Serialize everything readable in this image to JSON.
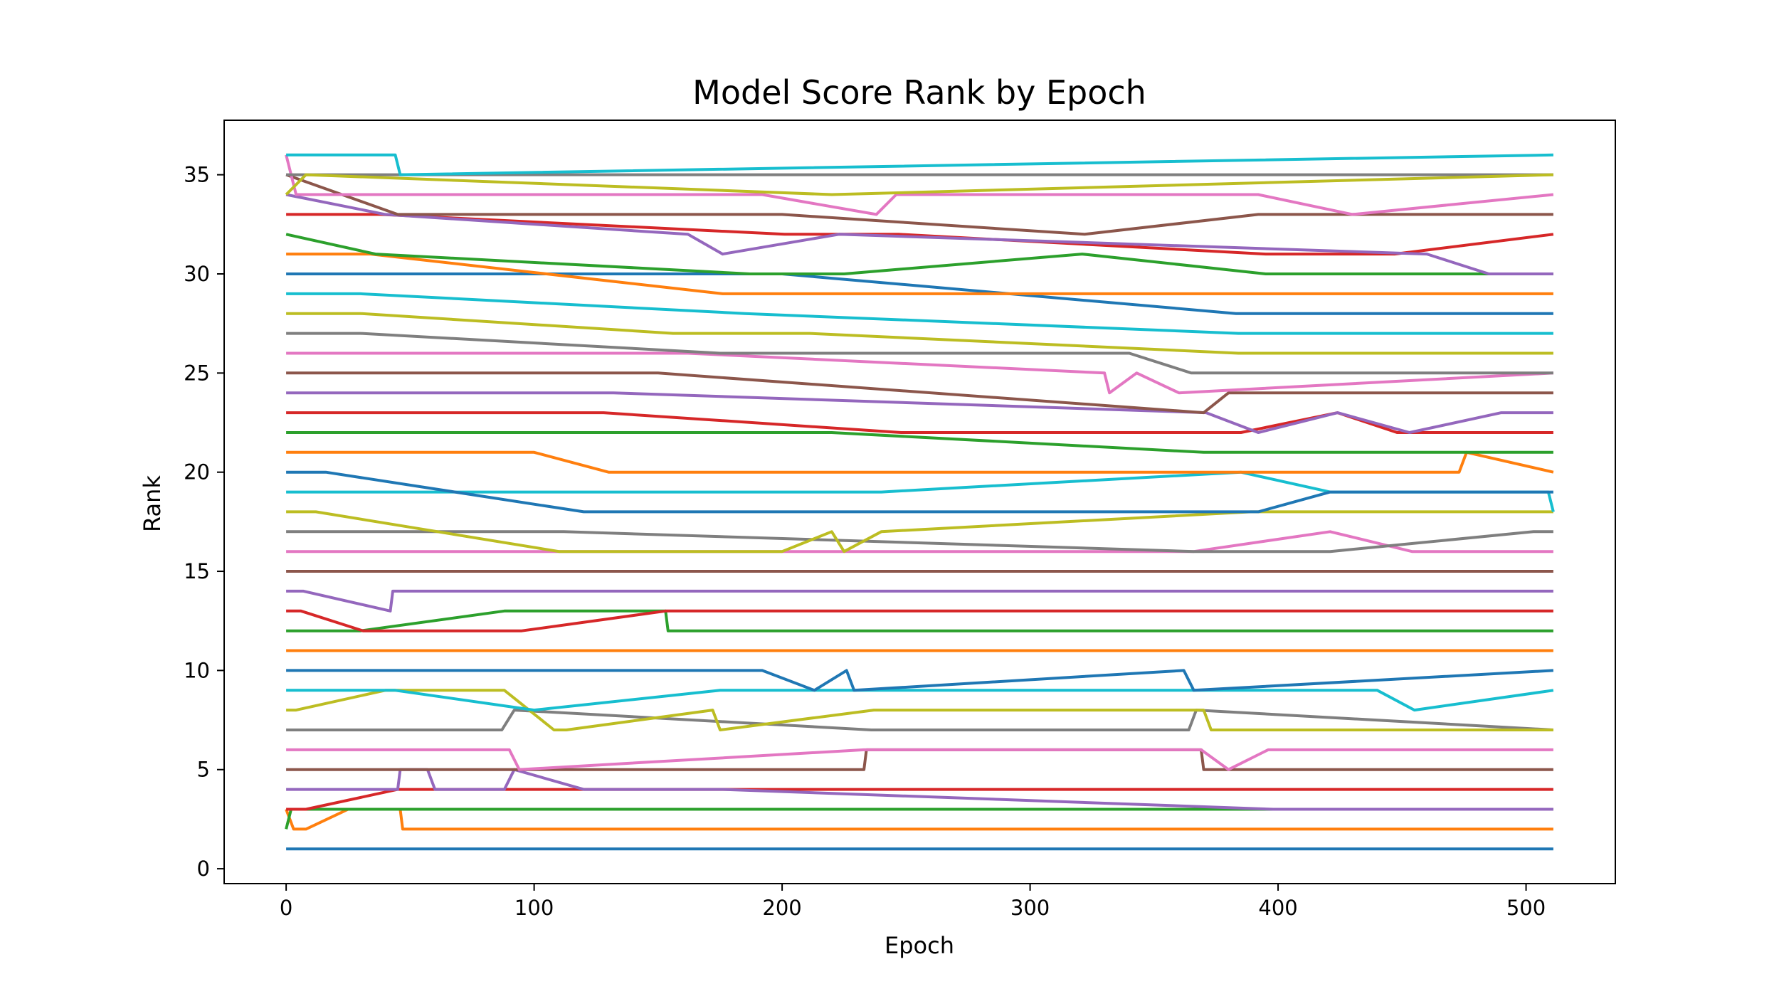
{
  "chart_data": {
    "type": "line",
    "title": "Model Score Rank by Epoch",
    "xlabel": "Epoch",
    "ylabel": "Rank",
    "xlim": [
      -25,
      536
    ],
    "ylim": [
      -0.75,
      37.75
    ],
    "xticks": [
      0,
      100,
      200,
      300,
      400,
      500
    ],
    "yticks": [
      0,
      5,
      10,
      15,
      20,
      25,
      30,
      35
    ],
    "xtick_labels": [
      "0",
      "100",
      "200",
      "300",
      "400",
      "500"
    ],
    "ytick_labels": [
      "0",
      "5",
      "10",
      "15",
      "20",
      "25",
      "30",
      "35"
    ],
    "grid": false,
    "legend": "none",
    "colors": [
      "#1f77b4",
      "#ff7f0e",
      "#2ca02c",
      "#d62728",
      "#9467bd",
      "#8c564b",
      "#e377c2",
      "#7f7f7f",
      "#bcbd22",
      "#17becf"
    ],
    "series": [
      {
        "x": [
          0,
          4,
          511
        ],
        "y": [
          1,
          1,
          1
        ]
      },
      {
        "x": [
          0,
          3,
          8,
          25,
          46,
          47,
          511
        ],
        "y": [
          3,
          2,
          2,
          3,
          3,
          2,
          2
        ]
      },
      {
        "x": [
          0,
          2,
          28,
          45,
          46,
          397,
          398,
          511
        ],
        "y": [
          2,
          3,
          3,
          3,
          3,
          3,
          3,
          3
        ]
      },
      {
        "x": [
          0,
          3,
          8,
          45,
          397,
          398,
          511
        ],
        "y": [
          3,
          3,
          3,
          4,
          4,
          4,
          4
        ]
      },
      {
        "x": [
          0,
          2,
          6,
          45,
          46,
          57,
          60,
          88,
          92,
          120,
          175,
          176,
          398,
          511
        ],
        "y": [
          4,
          4,
          4,
          4,
          5,
          5,
          4,
          4,
          5,
          4,
          4,
          4,
          3,
          3
        ]
      },
      {
        "x": [
          0,
          4,
          30,
          40,
          233,
          234,
          369,
          370,
          395,
          511
        ],
        "y": [
          5,
          5,
          5,
          5,
          5,
          6,
          6,
          5,
          5,
          5
        ]
      },
      {
        "x": [
          0,
          3,
          20,
          90,
          94,
          233,
          369,
          380,
          396,
          511
        ],
        "y": [
          6,
          6,
          6,
          6,
          5,
          6,
          6,
          5,
          6,
          6
        ]
      },
      {
        "x": [
          0,
          4,
          30,
          87,
          92,
          236,
          364,
          367,
          511
        ],
        "y": [
          7,
          7,
          7,
          7,
          8,
          7,
          7,
          8,
          7
        ]
      },
      {
        "x": [
          0,
          4,
          40,
          88,
          108,
          113,
          172,
          175,
          237,
          370,
          373,
          511
        ],
        "y": [
          8,
          8,
          9,
          9,
          7,
          7,
          8,
          7,
          8,
          8,
          7,
          7
        ]
      },
      {
        "x": [
          0,
          5,
          44,
          100,
          175,
          192,
          213,
          440,
          455,
          511
        ],
        "y": [
          9,
          9,
          9,
          8,
          9,
          9,
          9,
          9,
          8,
          9
        ]
      },
      {
        "x": [
          0,
          6,
          46,
          192,
          213,
          226,
          229,
          362,
          366,
          511
        ],
        "y": [
          10,
          10,
          10,
          10,
          9,
          10,
          9,
          10,
          9,
          10
        ]
      },
      {
        "x": [
          0,
          8,
          46,
          47,
          511
        ],
        "y": [
          11,
          11,
          11,
          11,
          11
        ]
      },
      {
        "x": [
          0,
          6,
          30,
          88,
          153,
          154,
          511
        ],
        "y": [
          12,
          12,
          12,
          13,
          13,
          12,
          12
        ]
      },
      {
        "x": [
          0,
          6,
          31,
          88,
          95,
          153,
          511
        ],
        "y": [
          13,
          13,
          12,
          12,
          12,
          13,
          13
        ]
      },
      {
        "x": [
          0,
          7,
          42,
          43,
          511
        ],
        "y": [
          14,
          14,
          13,
          14,
          14
        ]
      },
      {
        "x": [
          0,
          8,
          40,
          106,
          107,
          511
        ],
        "y": [
          15,
          15,
          15,
          15,
          15,
          15
        ]
      },
      {
        "x": [
          0,
          10,
          106,
          366,
          421,
          454,
          500,
          511
        ],
        "y": [
          16,
          16,
          16,
          16,
          17,
          16,
          16,
          16
        ]
      },
      {
        "x": [
          0,
          10,
          84,
          112,
          366,
          421,
          503,
          511
        ],
        "y": [
          17,
          17,
          17,
          17,
          16,
          16,
          17,
          17
        ]
      },
      {
        "x": [
          0,
          12,
          110,
          200,
          220,
          225,
          240,
          389,
          511
        ],
        "y": [
          18,
          18,
          16,
          16,
          17,
          16,
          17,
          18,
          18
        ]
      },
      {
        "x": [
          0,
          14,
          120,
          215,
          240,
          385,
          421,
          509,
          511
        ],
        "y": [
          19,
          19,
          19,
          19,
          19,
          20,
          19,
          19,
          18
        ]
      },
      {
        "x": [
          0,
          16,
          120,
          225,
          392,
          421,
          511
        ],
        "y": [
          20,
          20,
          18,
          18,
          18,
          19,
          19
        ]
      },
      {
        "x": [
          0,
          18,
          100,
          130,
          255,
          385,
          422,
          473,
          476,
          511
        ],
        "y": [
          21,
          21,
          21,
          20,
          20,
          20,
          20,
          20,
          21,
          20
        ]
      },
      {
        "x": [
          0,
          20,
          130,
          220,
          370,
          385,
          403,
          440,
          511
        ],
        "y": [
          22,
          22,
          22,
          22,
          21,
          21,
          21,
          21,
          21
        ]
      },
      {
        "x": [
          0,
          22,
          128,
          248,
          340,
          385,
          424,
          448,
          511
        ],
        "y": [
          23,
          23,
          23,
          22,
          22,
          22,
          23,
          22,
          22
        ]
      },
      {
        "x": [
          0,
          24,
          132,
          371,
          392,
          424,
          453,
          490,
          511
        ],
        "y": [
          24,
          24,
          24,
          23,
          22,
          23,
          22,
          23,
          23
        ]
      },
      {
        "x": [
          0,
          26,
          150,
          370,
          380,
          397,
          511
        ],
        "y": [
          25,
          25,
          25,
          23,
          24,
          24,
          24
        ]
      },
      {
        "x": [
          0,
          28,
          162,
          330,
          332,
          343,
          360,
          511
        ],
        "y": [
          26,
          26,
          26,
          25,
          24,
          25,
          24,
          25
        ]
      },
      {
        "x": [
          0,
          30,
          175,
          340,
          365,
          511
        ],
        "y": [
          27,
          27,
          26,
          26,
          25,
          25
        ]
      },
      {
        "x": [
          0,
          30,
          156,
          187,
          211,
          384,
          448,
          465,
          511
        ],
        "y": [
          28,
          28,
          27,
          27,
          27,
          26,
          26,
          26,
          26
        ]
      },
      {
        "x": [
          0,
          30,
          185,
          384,
          443,
          511
        ],
        "y": [
          29,
          29,
          28,
          27,
          27,
          27
        ]
      },
      {
        "x": [
          0,
          32,
          200,
          383,
          420,
          440,
          506,
          511
        ],
        "y": [
          30,
          30,
          30,
          28,
          28,
          28,
          28,
          28
        ]
      },
      {
        "x": [
          0,
          34,
          176,
          383,
          421,
          440,
          506,
          511
        ],
        "y": [
          31,
          31,
          29,
          29,
          29,
          29,
          29,
          29
        ]
      },
      {
        "x": [
          0,
          36,
          187,
          225,
          321,
          395,
          511
        ],
        "y": [
          32,
          31,
          30,
          30,
          31,
          30,
          30
        ]
      },
      {
        "x": [
          0,
          38,
          201,
          247,
          395,
          447,
          511
        ],
        "y": [
          33,
          33,
          32,
          32,
          31,
          31,
          32
        ]
      },
      {
        "x": [
          0,
          40,
          162,
          176,
          223,
          460,
          485,
          511
        ],
        "y": [
          34,
          33,
          32,
          31,
          32,
          31,
          30,
          30
        ]
      },
      {
        "x": [
          0,
          45,
          160,
          200,
          322,
          392,
          440,
          511
        ],
        "y": [
          35,
          33,
          33,
          33,
          32,
          33,
          33,
          33
        ]
      },
      {
        "x": [
          0,
          4,
          192,
          238,
          246,
          392,
          430,
          511
        ],
        "y": [
          36,
          34,
          34,
          33,
          34,
          34,
          33,
          34
        ]
      },
      {
        "x": [
          0,
          6,
          219,
          511
        ],
        "y": [
          35,
          35,
          35,
          35
        ]
      },
      {
        "x": [
          0,
          8,
          220,
          511
        ],
        "y": [
          34,
          35,
          34,
          35
        ]
      },
      {
        "x": [
          0,
          10,
          44,
          46,
          511
        ],
        "y": [
          36,
          36,
          36,
          35,
          36
        ]
      }
    ]
  }
}
